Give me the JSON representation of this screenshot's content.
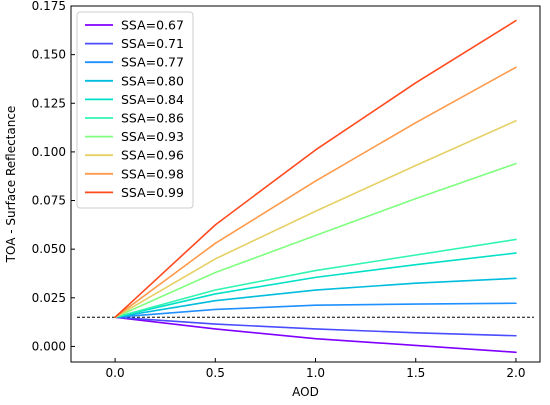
{
  "chart_data": {
    "type": "line",
    "title": "",
    "xlabel": "AOD",
    "ylabel": "TOA - Surface Reflectance",
    "xlim": [
      -0.22,
      2.12
    ],
    "ylim": [
      -0.008,
      0.175
    ],
    "xticks": [
      0.0,
      0.5,
      1.0,
      1.5,
      2.0
    ],
    "xtick_labels": [
      "0.0",
      "0.5",
      "1.0",
      "1.5",
      "2.0"
    ],
    "yticks": [
      0.0,
      0.025,
      0.05,
      0.075,
      0.1,
      0.125,
      0.15,
      0.175
    ],
    "ytick_labels": [
      "0.000",
      "0.025",
      "0.050",
      "0.075",
      "0.100",
      "0.125",
      "0.150",
      "0.175"
    ],
    "grid": false,
    "legend_position": "upper-left",
    "reference_line": {
      "y": 0.015,
      "style": "dashed",
      "color": "#000000"
    },
    "x": [
      0.0,
      0.5,
      1.0,
      1.5,
      2.0
    ],
    "series": [
      {
        "name": "SSA=0.67",
        "color": "#8000ff",
        "values": [
          0.015,
          0.009,
          0.004,
          0.0005,
          -0.003
        ]
      },
      {
        "name": "SSA=0.71",
        "color": "#4a4dff",
        "values": [
          0.015,
          0.0115,
          0.009,
          0.007,
          0.0055
        ]
      },
      {
        "name": "SSA=0.77",
        "color": "#1e90ff",
        "values": [
          0.015,
          0.019,
          0.0212,
          0.0218,
          0.0222
        ]
      },
      {
        "name": "SSA=0.80",
        "color": "#00bcdd",
        "values": [
          0.015,
          0.0235,
          0.029,
          0.0325,
          0.035
        ]
      },
      {
        "name": "SSA=0.84",
        "color": "#00e0c8",
        "values": [
          0.015,
          0.027,
          0.0355,
          0.042,
          0.048
        ]
      },
      {
        "name": "SSA=0.86",
        "color": "#30f5b0",
        "values": [
          0.015,
          0.029,
          0.039,
          0.047,
          0.055
        ]
      },
      {
        "name": "SSA=0.93",
        "color": "#80ff80",
        "values": [
          0.015,
          0.038,
          0.057,
          0.076,
          0.094
        ]
      },
      {
        "name": "SSA=0.96",
        "color": "#e6d065",
        "values": [
          0.015,
          0.045,
          0.0695,
          0.093,
          0.116
        ]
      },
      {
        "name": "SSA=0.98",
        "color": "#ff9a4a",
        "values": [
          0.015,
          0.053,
          0.085,
          0.115,
          0.1435
        ]
      },
      {
        "name": "SSA=0.99",
        "color": "#ff4a1f",
        "values": [
          0.015,
          0.0625,
          0.101,
          0.1355,
          0.1675
        ]
      }
    ]
  }
}
